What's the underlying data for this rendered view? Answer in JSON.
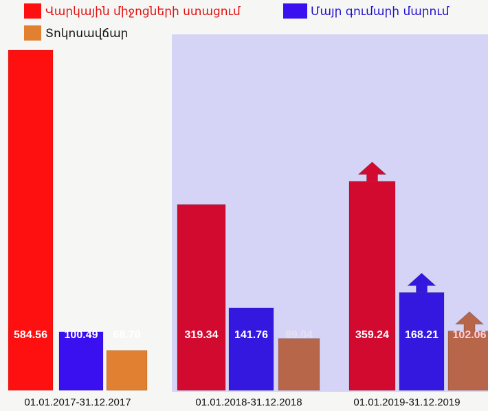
{
  "chart_data": {
    "type": "bar",
    "categories": [
      "01.01.2017-31.12.2017",
      "01.01.2018-31.12.2018",
      "01.01.2019-31.12.2019"
    ],
    "series": [
      {
        "name": "Վարկային միջոցների ստացում",
        "color": "#ff1010",
        "colors": [
          "#ff1010",
          "#d20a30",
          "#d20a30"
        ],
        "values": [
          584.56,
          319.34,
          359.24
        ],
        "value_labels": [
          "584.56",
          "319.34",
          "359.24"
        ]
      },
      {
        "name": "Մայր գումարի մարում",
        "color": "#3a10f0",
        "colors": [
          "#3a10f0",
          "#3518e0",
          "#3518e0"
        ],
        "values": [
          100.49,
          141.76,
          168.21
        ],
        "value_labels": [
          "100.49",
          "141.76",
          "168.21"
        ]
      },
      {
        "name": "Տոկոսավճար",
        "color": "#e08030",
        "colors": [
          "#e08030",
          "#b8664a",
          "#b8664a"
        ],
        "values": [
          68.7,
          89.04,
          102.06
        ],
        "value_labels": [
          "68.70",
          "89.04",
          "102.06"
        ]
      }
    ]
  }
}
